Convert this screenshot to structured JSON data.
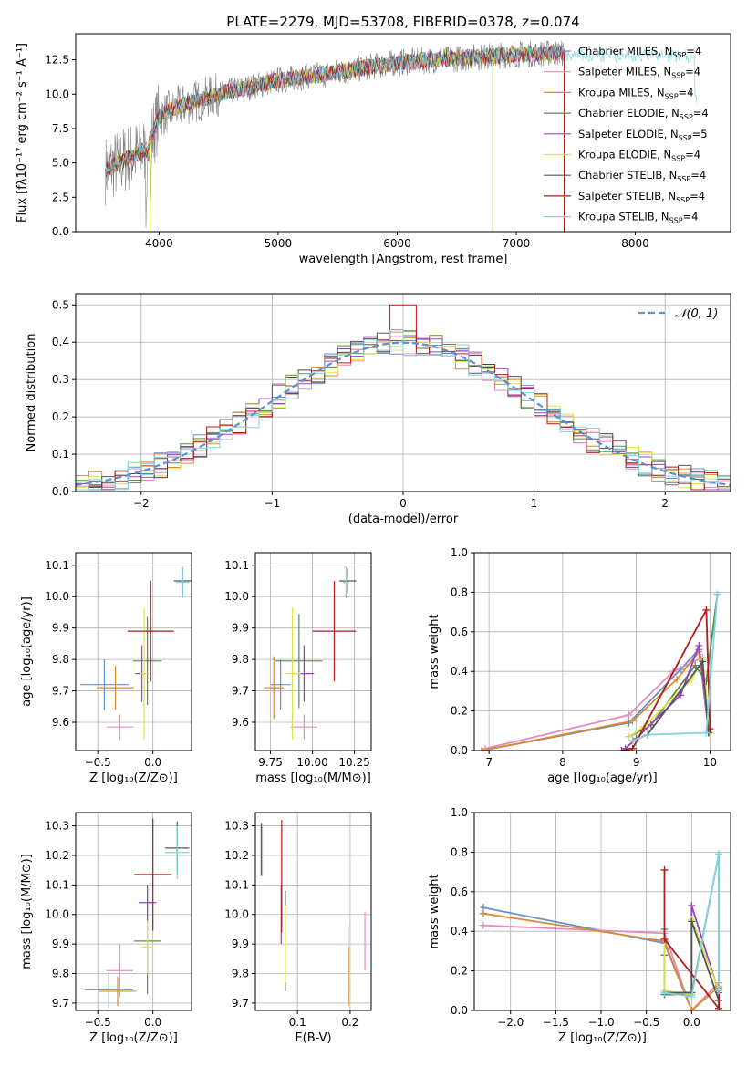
{
  "title": "PLATE=2279, MJD=53708, FIBERID=0378, z=0.074",
  "series_colors": [
    "#6a8fcf",
    "#e78ac3",
    "#d98c2b",
    "#5a8a4f",
    "#9b40c0",
    "#d6e64a",
    "#555555",
    "#b01c1c",
    "#7fd3e0"
  ],
  "chart_data": [
    {
      "id": "spectrum",
      "type": "line",
      "xlabel": "wavelength [Angstrom, rest frame]",
      "ylabel": "Flux [fλ10⁻¹⁷ erg cm⁻² s⁻¹ A⁻¹]",
      "xlim": [
        3300,
        8800
      ],
      "ylim": [
        0,
        14.4
      ],
      "xticks": [
        4000,
        5000,
        6000,
        7000,
        8000
      ],
      "yticks": [
        0.0,
        2.5,
        5.0,
        7.5,
        10.0,
        12.5
      ],
      "grid": false,
      "legend_position": "right",
      "continuum": {
        "x": [
          3550,
          3700,
          3900,
          4000,
          4200,
          4500,
          5000,
          5500,
          6000,
          6500,
          7000,
          7400
        ],
        "y": [
          4.5,
          5.2,
          6.0,
          8.4,
          9.2,
          10.0,
          11.0,
          11.6,
          12.3,
          12.6,
          12.9,
          13.0
        ]
      },
      "data_range": [
        3550,
        7400
      ],
      "model_range": [
        3550,
        8520
      ],
      "series": [
        {
          "name": "Chabrier MILES, N",
          "sub": "SSP",
          "n": "=4"
        },
        {
          "name": "Salpeter MILES, N",
          "sub": "SSP",
          "n": "=4"
        },
        {
          "name": "Kroupa MILES, N",
          "sub": "SSP",
          "n": "=4"
        },
        {
          "name": "Chabrier ELODIE, N",
          "sub": "SSP",
          "n": "=4"
        },
        {
          "name": "Salpeter ELODIE, N",
          "sub": "SSP",
          "n": "=5"
        },
        {
          "name": "Kroupa ELODIE, N",
          "sub": "SSP",
          "n": "=4"
        },
        {
          "name": "Chabrier STELIB, N",
          "sub": "SSP",
          "n": "=4"
        },
        {
          "name": "Salpeter STELIB, N",
          "sub": "SSP",
          "n": "=4"
        },
        {
          "name": "Kroupa STELIB, N",
          "sub": "SSP",
          "n": "=4"
        }
      ]
    },
    {
      "id": "residuals",
      "type": "histogram",
      "xlabel": "(data-model)/error",
      "ylabel": "Normed distribution",
      "xlim": [
        -2.5,
        2.5
      ],
      "ylim": [
        0,
        0.53
      ],
      "xticks": [
        -2,
        -1,
        0,
        1,
        2
      ],
      "yticks": [
        0.0,
        0.1,
        0.2,
        0.3,
        0.4,
        0.5
      ],
      "grid": true,
      "legend_position": "top-right",
      "legend": "𝒩(0, 1)",
      "bin_width": 0.1,
      "normal": {
        "mean": 0,
        "sigma": 1
      }
    },
    {
      "id": "age-vs-Z",
      "type": "errorbar",
      "xlabel": "Z [log₁₀(Z/Z⊙)]",
      "ylabel": "age  [log₁₀(age/yr)]",
      "xlim": [
        -0.7,
        0.35
      ],
      "ylim": [
        9.51,
        10.14
      ],
      "xticks": [
        -0.5,
        0.0
      ],
      "yticks": [
        9.6,
        9.7,
        9.8,
        9.9,
        10.0,
        10.1
      ],
      "grid": true,
      "points": [
        {
          "x": -0.44,
          "y": 9.72,
          "xerr": 0.22,
          "yerr": 0.08
        },
        {
          "x": -0.3,
          "y": 9.585,
          "xerr": 0.12,
          "yerr": 0.04
        },
        {
          "x": -0.34,
          "y": 9.71,
          "xerr": 0.17,
          "yerr": 0.07
        },
        {
          "x": -0.05,
          "y": 9.795,
          "xerr": 0.13,
          "yerr": 0.14
        },
        {
          "x": -0.1,
          "y": 9.755,
          "xerr": 0.06,
          "yerr": 0.09
        },
        {
          "x": -0.08,
          "y": 9.755,
          "xerr": 0.04,
          "yerr": 0.21
        },
        {
          "x": 0.27,
          "y": 10.05,
          "xerr": 0.08,
          "yerr": 0.04
        },
        {
          "x": -0.02,
          "y": 9.89,
          "xerr": 0.21,
          "yerr": 0.16
        },
        {
          "x": 0.27,
          "y": 10.045,
          "xerr": 0.06,
          "yerr": 0.05
        }
      ]
    },
    {
      "id": "age-vs-mass",
      "type": "errorbar",
      "xlabel": "mass [log₁₀(M/M⊙)]",
      "ylabel": "",
      "xlim": [
        9.66,
        10.35
      ],
      "ylim": [
        9.51,
        10.14
      ],
      "xticks": [
        9.75,
        10.0,
        10.25
      ],
      "yticks": [
        9.6,
        9.7,
        9.8,
        9.9,
        10.0,
        10.1
      ],
      "grid": true,
      "points": [
        {
          "x": 9.81,
          "y": 9.72,
          "xerr": 0.06,
          "yerr": 0.08
        },
        {
          "x": 9.95,
          "y": 9.585,
          "xerr": 0.08,
          "yerr": 0.04
        },
        {
          "x": 9.77,
          "y": 9.71,
          "xerr": 0.06,
          "yerr": 0.1
        },
        {
          "x": 9.92,
          "y": 9.795,
          "xerr": 0.14,
          "yerr": 0.15
        },
        {
          "x": 9.95,
          "y": 9.755,
          "xerr": 0.06,
          "yerr": 0.09
        },
        {
          "x": 9.88,
          "y": 9.755,
          "xerr": 0.05,
          "yerr": 0.21
        },
        {
          "x": 10.21,
          "y": 10.05,
          "xerr": 0.05,
          "yerr": 0.04
        },
        {
          "x": 10.13,
          "y": 9.89,
          "xerr": 0.13,
          "yerr": 0.16
        },
        {
          "x": 10.2,
          "y": 10.045,
          "xerr": 0.02,
          "yerr": 0.05
        }
      ]
    },
    {
      "id": "massweight-vs-age",
      "type": "line",
      "xlabel": "age  [log₁₀(age/yr)]",
      "ylabel": "mass weight",
      "xlim": [
        6.8,
        10.28
      ],
      "ylim": [
        0,
        1.0
      ],
      "xticks": [
        7,
        8,
        9,
        10
      ],
      "yticks": [
        0.0,
        0.2,
        0.4,
        0.6,
        0.8,
        1.0
      ],
      "grid": true,
      "series": [
        {
          "x": [
            6.9,
            8.9,
            9.6,
            9.85,
            9.98
          ],
          "y": [
            0.0,
            0.14,
            0.41,
            0.51,
            0.09
          ]
        },
        {
          "x": [
            6.95,
            8.9,
            9.5,
            9.9,
            10.0
          ],
          "y": [
            0.01,
            0.18,
            0.4,
            0.47,
            0.09
          ]
        },
        {
          "x": [
            6.9,
            8.95,
            9.55,
            9.85,
            10.0
          ],
          "y": [
            0.0,
            0.15,
            0.36,
            0.5,
            0.09
          ]
        },
        {
          "x": [
            8.9,
            9.2,
            9.8,
            9.95,
            10.1
          ],
          "y": [
            0.07,
            0.13,
            0.43,
            0.35,
            0.79
          ]
        },
        {
          "x": [
            8.85,
            9.0,
            9.6,
            9.85,
            10.0
          ],
          "y": [
            0.01,
            0.06,
            0.28,
            0.53,
            0.09
          ]
        },
        {
          "x": [
            8.9,
            9.1,
            9.75,
            9.9,
            10.0
          ],
          "y": [
            0.07,
            0.12,
            0.36,
            0.46,
            0.09
          ]
        },
        {
          "x": [
            8.95,
            9.15,
            9.9,
            9.98
          ],
          "y": [
            0.05,
            0.08,
            0.45,
            0.09
          ]
        },
        {
          "x": [
            8.8,
            8.95,
            9.95,
            10.0
          ],
          "y": [
            0.0,
            0.01,
            0.71,
            0.11
          ]
        },
        {
          "x": [
            8.95,
            9.15,
            9.95,
            10.1
          ],
          "y": [
            0.05,
            0.08,
            0.09,
            0.79
          ]
        }
      ]
    },
    {
      "id": "mass-vs-Z",
      "type": "errorbar",
      "xlabel": "Z [log₁₀(Z/Z⊙)]",
      "ylabel": "mass [log₁₀(M/M⊙)]",
      "xlim": [
        -0.7,
        0.35
      ],
      "ylim": [
        9.675,
        10.345
      ],
      "xticks": [
        -0.5,
        0.0
      ],
      "yticks": [
        9.7,
        9.8,
        9.9,
        10.0,
        10.1,
        10.2,
        10.3
      ],
      "grid": true,
      "points": [
        {
          "x": -0.4,
          "y": 9.745,
          "xerr": 0.22,
          "yerr": 0.06
        },
        {
          "x": -0.3,
          "y": 9.81,
          "xerr": 0.12,
          "yerr": 0.09
        },
        {
          "x": -0.32,
          "y": 9.74,
          "xerr": 0.17,
          "yerr": 0.05
        },
        {
          "x": -0.05,
          "y": 9.91,
          "xerr": 0.12,
          "yerr": 0.18
        },
        {
          "x": -0.05,
          "y": 10.04,
          "xerr": 0.08,
          "yerr": 0.06
        },
        {
          "x": -0.05,
          "y": 9.89,
          "xerr": 0.05,
          "yerr": 0.09
        },
        {
          "x": 0.22,
          "y": 10.225,
          "xerr": 0.11,
          "yerr": 0.09
        },
        {
          "x": 0.0,
          "y": 10.135,
          "xerr": 0.17,
          "yerr": 0.19
        },
        {
          "x": 0.22,
          "y": 10.21,
          "xerr": 0.11,
          "yerr": 0.09
        }
      ]
    },
    {
      "id": "mass-vs-EBV",
      "type": "errorbar",
      "xlabel": "E(B-V)",
      "ylabel": "",
      "xlim": [
        0.02,
        0.24
      ],
      "ylim": [
        9.675,
        10.345
      ],
      "xticks": [
        0.1,
        0.2
      ],
      "yticks": [
        9.7,
        9.8,
        9.9,
        10.0,
        10.1,
        10.2,
        10.3
      ],
      "grid": true,
      "points": [
        {
          "x": 0.196,
          "y": 9.86,
          "xerr": 0.0,
          "yerr": 0.1
        },
        {
          "x": 0.228,
          "y": 9.91,
          "xerr": 0.0,
          "yerr": 0.1
        },
        {
          "x": 0.197,
          "y": 9.79,
          "xerr": 0.0,
          "yerr": 0.1
        },
        {
          "x": 0.077,
          "y": 9.91,
          "xerr": 0.0,
          "yerr": 0.17
        },
        {
          "x": 0.069,
          "y": 10.0,
          "xerr": 0.0,
          "yerr": 0.1
        },
        {
          "x": 0.077,
          "y": 9.9,
          "xerr": 0.0,
          "yerr": 0.13
        },
        {
          "x": 0.031,
          "y": 10.22,
          "xerr": 0.0,
          "yerr": 0.09
        },
        {
          "x": 0.07,
          "y": 10.13,
          "xerr": 0.0,
          "yerr": 0.19
        },
        {
          "x": 0.033,
          "y": 10.22,
          "xerr": 0.0,
          "yerr": 0.09
        }
      ]
    },
    {
      "id": "massweight-vs-Z",
      "type": "line",
      "xlabel": "Z [log₁₀(Z/Z⊙)]",
      "ylabel": "mass weight",
      "xlim": [
        -2.4,
        0.43
      ],
      "ylim": [
        0,
        1.0
      ],
      "xticks": [
        -2.0,
        -1.5,
        -1.0,
        -0.5,
        0.0
      ],
      "yticks": [
        0.0,
        0.2,
        0.4,
        0.6,
        0.8,
        1.0
      ],
      "grid": true,
      "series": [
        {
          "x": [
            -2.3,
            -0.3,
            0.0,
            0.3
          ],
          "y": [
            0.52,
            0.34,
            0.0,
            0.14
          ]
        },
        {
          "x": [
            -2.3,
            -0.3,
            0.0,
            0.3
          ],
          "y": [
            0.43,
            0.39,
            0.0,
            0.14
          ]
        },
        {
          "x": [
            -2.3,
            -0.3,
            0.0,
            0.3
          ],
          "y": [
            0.49,
            0.35,
            0.0,
            0.12
          ]
        },
        {
          "x": [
            -0.3,
            -0.3,
            0.0,
            0.3,
            0.3
          ],
          "y": [
            0.41,
            0.08,
            0.08,
            0.79,
            0.1
          ]
        },
        {
          "x": [
            -0.3,
            -0.3,
            0.0,
            0.0,
            0.3,
            0.3
          ],
          "y": [
            0.28,
            0.09,
            0.09,
            0.53,
            0.09,
            0.01
          ]
        },
        {
          "x": [
            -0.3,
            -0.3,
            0.0,
            0.0,
            0.3
          ],
          "y": [
            0.36,
            0.1,
            0.08,
            0.46,
            0.1
          ]
        },
        {
          "x": [
            -0.3,
            0.0,
            0.0,
            0.3
          ],
          "y": [
            0.09,
            0.09,
            0.45,
            0.05
          ]
        },
        {
          "x": [
            -0.3,
            -0.3,
            0.3,
            0.3
          ],
          "y": [
            0.71,
            0.36,
            0.01,
            0.11
          ]
        },
        {
          "x": [
            -0.3,
            0.0,
            0.3,
            0.3
          ],
          "y": [
            0.09,
            0.07,
            0.79,
            0.1
          ]
        }
      ]
    }
  ]
}
